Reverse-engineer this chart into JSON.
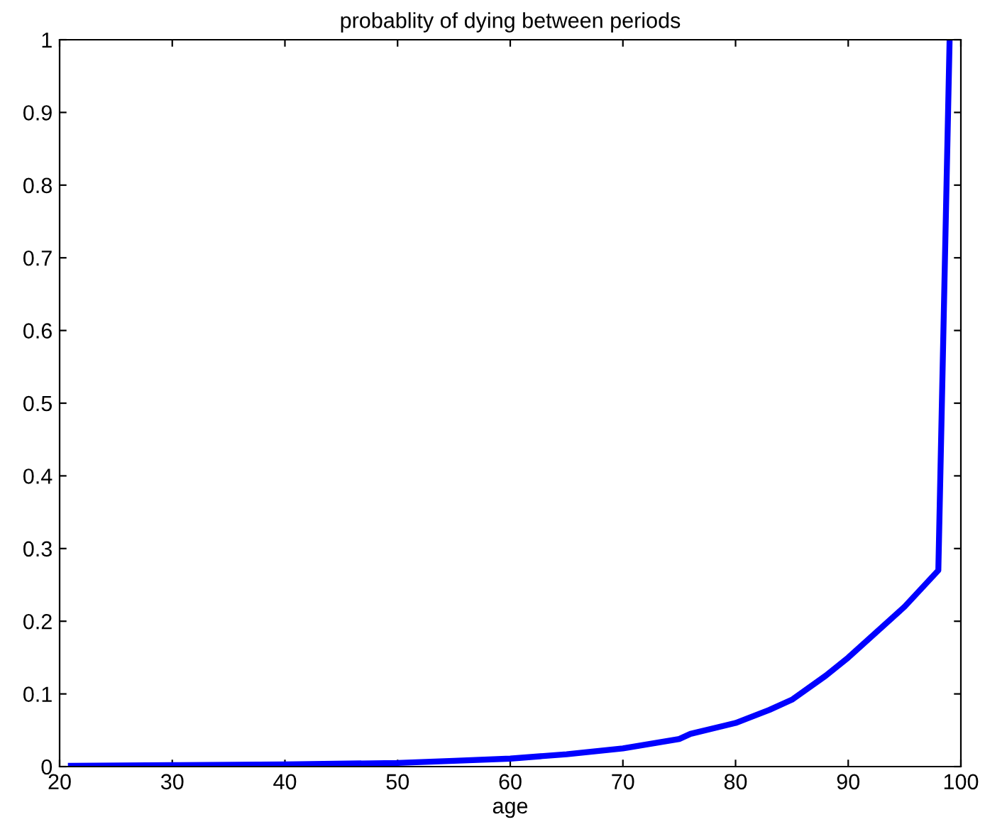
{
  "chart_data": {
    "type": "line",
    "title": "probablity of dying between periods",
    "xlabel": "age",
    "x": [
      21,
      30,
      40,
      50,
      55,
      60,
      65,
      70,
      75,
      76,
      80,
      83,
      85,
      88,
      90,
      95,
      98,
      99
    ],
    "series": [
      {
        "color": "#0000ff",
        "values": [
          0.001,
          0.002,
          0.003,
          0.005,
          0.008,
          0.011,
          0.017,
          0.025,
          0.038,
          0.045,
          0.06,
          0.078,
          0.092,
          0.125,
          0.15,
          0.22,
          0.27,
          1.0
        ]
      }
    ],
    "xlim": [
      20,
      100
    ],
    "xticks": [
      20,
      30,
      40,
      50,
      60,
      70,
      80,
      90,
      100
    ],
    "ylim": [
      0,
      1
    ],
    "yticks": [
      0,
      0.1,
      0.2,
      0.3,
      0.4,
      0.5,
      0.6,
      0.7,
      0.8,
      0.9,
      1
    ],
    "grid": false,
    "legend": false,
    "marker": "none",
    "line_style": "solid"
  }
}
